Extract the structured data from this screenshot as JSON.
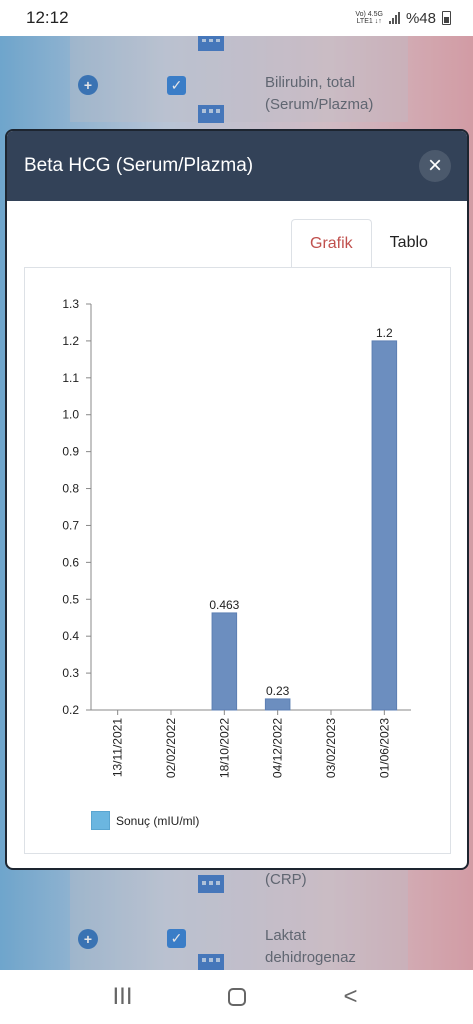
{
  "status_bar": {
    "time": "12:12",
    "network_top": "Vo) 4.5G",
    "network_bottom": "LTE1 ↓↑",
    "battery": "%48"
  },
  "background": {
    "rows": [
      {
        "label_line1": "Bilirubin, total",
        "label_line2": "(Serum/Plazma)"
      },
      {
        "label_line1": "(CRP)",
        "label_line2": ""
      },
      {
        "label_line1": "Laktat",
        "label_line2": "dehidrogenaz"
      }
    ]
  },
  "modal": {
    "title": "Beta HCG (Serum/Plazma)",
    "close_glyph": "×",
    "tabs": [
      {
        "label": "Grafik",
        "active": true
      },
      {
        "label": "Tablo",
        "active": false
      }
    ]
  },
  "chart_data": {
    "type": "bar",
    "categories": [
      "13/11/2021",
      "02/02/2022",
      "18/10/2022",
      "04/12/2022",
      "03/02/2023",
      "01/06/2023"
    ],
    "series": [
      {
        "name": "Sonuç (mIU/ml)",
        "values": [
          0.2,
          0.2,
          0.463,
          0.23,
          0.2,
          1.2
        ]
      }
    ],
    "value_labels": [
      "",
      "",
      "0.463",
      "0.23",
      "",
      "1.2"
    ],
    "ylim": [
      0.2,
      1.3
    ],
    "yticks": [
      "0.2",
      "0.3",
      "0.4",
      "0.5",
      "0.6",
      "0.7",
      "0.8",
      "0.9",
      "1.0",
      "1.1",
      "1.2",
      "1.3"
    ],
    "bar_color": "#6c8ebf",
    "legend_color": "#6bb6e0",
    "legend_position": "bottom-left",
    "grid": false
  },
  "nav_bar": {
    "recents": "III",
    "back": "<"
  }
}
